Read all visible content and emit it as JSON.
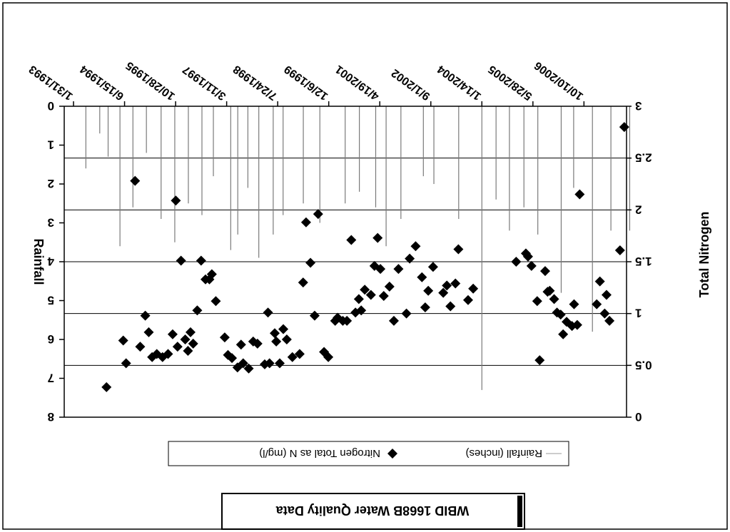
{
  "chart_data": {
    "type": "scatter",
    "title": "WBID 1668B Water Quality Data",
    "x_tick_labels": [
      "1/31/1993",
      "6/15/1994",
      "10/28/1995",
      "3/11/1997",
      "7/24/1998",
      "12/6/1999",
      "4/19/2001",
      "9/1/2002",
      "1/14/2004",
      "5/28/2005",
      "10/10/2006"
    ],
    "y_left": {
      "label": "Rainfall",
      "ticks": [
        0,
        1,
        2,
        3,
        4,
        5,
        6,
        7,
        8
      ],
      "ylim": [
        0,
        8
      ]
    },
    "y_right": {
      "label": "Total Nitrogen",
      "ticks": [
        "0",
        "0.5",
        "1",
        "1.5",
        "2",
        "2.5",
        "3"
      ],
      "ylim": [
        0,
        3
      ],
      "inverted": true
    },
    "legend": {
      "placement": "bottom",
      "items": [
        "Rainfall (inches)",
        "Nitrogen Total as N (mg/l)"
      ]
    },
    "grid": true,
    "colors": {
      "rainfall": "#9a9a9a",
      "nitrogen": "#000000",
      "frame": "#000000"
    },
    "series": [
      {
        "name": "Nitrogen Total as N (mg/l)",
        "type": "scatter",
        "marker": "diamond",
        "points": [
          [
            "1993-12-20",
            0.29
          ],
          [
            "1994-06-02",
            0.74
          ],
          [
            "1994-06-30",
            0.52
          ],
          [
            "1994-09-26",
            2.28
          ],
          [
            "1994-11-15",
            0.68
          ],
          [
            "1995-01-04",
            0.98
          ],
          [
            "1995-02-07",
            0.82
          ],
          [
            "1995-03-12",
            0.58
          ],
          [
            "1995-04-27",
            0.61
          ],
          [
            "1995-06-22",
            0.58
          ],
          [
            "1995-08-15",
            0.61
          ],
          [
            "1995-09-29",
            0.8
          ],
          [
            "1995-10-30",
            2.09
          ],
          [
            "1995-11-16",
            0.68
          ],
          [
            "1995-12-20",
            1.51
          ],
          [
            "1996-01-30",
            0.75
          ],
          [
            "1996-02-26",
            0.64
          ],
          [
            "1996-03-22",
            0.82
          ],
          [
            "1996-04-17",
            0.71
          ],
          [
            "1996-05-27",
            1.03
          ],
          [
            "1996-07-04",
            1.51
          ],
          [
            "1996-08-16",
            1.33
          ],
          [
            "1996-09-23",
            1.33
          ],
          [
            "1996-10-17",
            1.38
          ],
          [
            "1996-11-25",
            1.12
          ],
          [
            "1997-02-20",
            0.77
          ],
          [
            "1997-03-24",
            0.6
          ],
          [
            "1997-05-02",
            0.57
          ],
          [
            "1997-06-25",
            0.48
          ],
          [
            "1997-07-30",
            0.7
          ],
          [
            "1997-08-20",
            0.52
          ],
          [
            "1997-10-13",
            0.47
          ],
          [
            "1997-11-26",
            0.73
          ],
          [
            "1998-01-07",
            0.71
          ],
          [
            "1998-03-19",
            0.51
          ],
          [
            "1998-04-20",
            1.01
          ],
          [
            "1998-05-05",
            0.52
          ],
          [
            "1998-06-25",
            0.81
          ],
          [
            "1998-07-10",
            0.73
          ],
          [
            "1998-08-13",
            0.52
          ],
          [
            "1998-09-17",
            0.85
          ],
          [
            "1998-10-21",
            0.75
          ],
          [
            "1998-12-15",
            0.58
          ],
          [
            "1999-02-24",
            0.61
          ],
          [
            "1999-03-30",
            1.3
          ],
          [
            "1999-04-28",
            1.88
          ],
          [
            "1999-06-10",
            1.49
          ],
          [
            "1999-07-21",
            0.98
          ],
          [
            "1999-08-24",
            1.96
          ],
          [
            "1999-10-21",
            0.63
          ],
          [
            "1999-12-02",
            0.58
          ],
          [
            "2000-02-07",
            0.93
          ],
          [
            "2000-03-02",
            0.96
          ],
          [
            "2000-04-22",
            0.93
          ],
          [
            "2000-06-01",
            0.93
          ],
          [
            "2000-07-14",
            1.71
          ],
          [
            "2000-08-24",
            1.01
          ],
          [
            "2000-09-26",
            1.14
          ],
          [
            "2000-10-19",
            1.03
          ],
          [
            "2000-11-23",
            1.23
          ],
          [
            "2001-01-22",
            1.18
          ],
          [
            "2001-02-26",
            1.46
          ],
          [
            "2001-03-29",
            1.73
          ],
          [
            "2001-04-25",
            1.43
          ],
          [
            "2001-05-28",
            1.17
          ],
          [
            "2001-07-23",
            1.26
          ],
          [
            "2001-09-04",
            0.93
          ],
          [
            "2001-10-19",
            1.43
          ],
          [
            "2002-01-05",
            1.0
          ],
          [
            "2002-02-06",
            1.53
          ],
          [
            "2002-04-05",
            1.65
          ],
          [
            "2002-06-06",
            1.35
          ],
          [
            "2002-07-08",
            1.06
          ],
          [
            "2002-08-07",
            1.22
          ],
          [
            "2002-09-23",
            1.45
          ],
          [
            "2003-01-01",
            1.2
          ],
          [
            "2003-02-05",
            1.27
          ],
          [
            "2003-03-12",
            1.07
          ],
          [
            "2003-04-30",
            1.29
          ],
          [
            "2003-05-29",
            1.62
          ],
          [
            "2003-09-01",
            1.13
          ],
          [
            "2003-10-21",
            1.24
          ],
          [
            "2004-12-15",
            1.5
          ],
          [
            "2005-03-20",
            1.58
          ],
          [
            "2005-04-10",
            1.55
          ],
          [
            "2005-05-14",
            1.46
          ],
          [
            "2005-07-09",
            1.12
          ],
          [
            "2005-08-02",
            0.55
          ],
          [
            "2005-09-25",
            1.41
          ],
          [
            "2005-10-19",
            1.21
          ],
          [
            "2005-11-09",
            1.22
          ],
          [
            "2005-12-22",
            1.14
          ],
          [
            "2006-01-19",
            1.01
          ],
          [
            "2006-02-24",
            0.99
          ],
          [
            "2006-03-20",
            0.8
          ],
          [
            "2006-04-23",
            0.92
          ],
          [
            "2006-06-15",
            0.88
          ],
          [
            "2006-07-05",
            1.09
          ],
          [
            "2006-08-05",
            0.89
          ],
          [
            "2006-08-29",
            2.15
          ],
          [
            "2007-02-12",
            1.09
          ],
          [
            "2007-03-15",
            1.31
          ],
          [
            "2007-05-01",
            1.0
          ],
          [
            "2007-05-19",
            1.18
          ],
          [
            "2007-06-17",
            0.93
          ],
          [
            "2007-09-28",
            1.61
          ],
          [
            "2007-11-09",
            2.8
          ]
        ]
      },
      {
        "name": "Rainfall (inches)",
        "type": "bar",
        "note": "daily rainfall spikes, mostly 0-3 inches",
        "peaks": [
          [
            "1993-06-01",
            1.6
          ],
          [
            "1993-10-15",
            0.7
          ],
          [
            "1994-01-05",
            1.3
          ],
          [
            "1994-05-01",
            3.6
          ],
          [
            "1994-09-05",
            2.6
          ],
          [
            "1995-01-15",
            1.2
          ],
          [
            "1995-06-08",
            2.9
          ],
          [
            "1995-10-20",
            3.5
          ],
          [
            "1996-03-01",
            2.5
          ],
          [
            "1996-07-12",
            2.8
          ],
          [
            "1996-11-01",
            1.8
          ],
          [
            "1997-04-20",
            3.7
          ],
          [
            "1997-06-28",
            3.3
          ],
          [
            "1997-10-05",
            2.1
          ],
          [
            "1998-01-20",
            3.9
          ],
          [
            "1998-06-10",
            3.3
          ],
          [
            "1998-09-15",
            2.8
          ],
          [
            "1999-04-01",
            2.5
          ],
          [
            "1999-09-10",
            3.0
          ],
          [
            "2000-05-15",
            2.5
          ],
          [
            "2000-10-01",
            2.2
          ],
          [
            "2001-03-10",
            2.6
          ],
          [
            "2001-06-20",
            3.6
          ],
          [
            "2001-11-12",
            2.9
          ],
          [
            "2002-06-20",
            1.8
          ],
          [
            "2002-10-01",
            2.0
          ],
          [
            "2003-06-01",
            2.9
          ],
          [
            "2004-01-14",
            7.3
          ],
          [
            "2004-06-01",
            2.4
          ],
          [
            "2004-10-10",
            3.2
          ],
          [
            "2005-03-01",
            2.6
          ],
          [
            "2005-07-15",
            3.3
          ],
          [
            "2006-03-01",
            4.8
          ],
          [
            "2006-07-01",
            2.1
          ],
          [
            "2007-01-01",
            5.8
          ],
          [
            "2007-07-01",
            3.2
          ],
          [
            "2008-01-01",
            3.2
          ]
        ]
      }
    ]
  }
}
